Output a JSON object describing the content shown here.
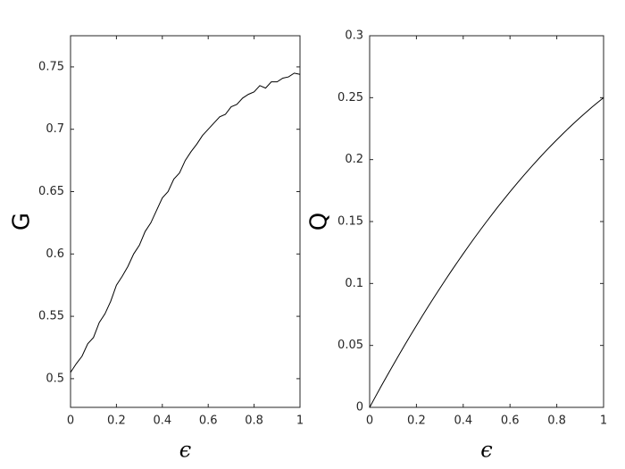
{
  "chart_data": [
    {
      "type": "line",
      "ylabel": "G",
      "xlabel": "ϵ",
      "xlim": [
        0,
        1
      ],
      "xticks": [
        0,
        0.2,
        0.4,
        0.6,
        0.8,
        1
      ],
      "ylim": [
        0.477,
        0.775
      ],
      "yticks": [
        0.5,
        0.55,
        0.6,
        0.65,
        0.7,
        0.75
      ],
      "x": [
        0,
        0.025,
        0.05,
        0.075,
        0.1,
        0.125,
        0.15,
        0.175,
        0.2,
        0.225,
        0.25,
        0.275,
        0.3,
        0.325,
        0.35,
        0.375,
        0.4,
        0.425,
        0.45,
        0.475,
        0.5,
        0.525,
        0.55,
        0.575,
        0.6,
        0.625,
        0.65,
        0.675,
        0.7,
        0.725,
        0.75,
        0.775,
        0.8,
        0.825,
        0.85,
        0.875,
        0.9,
        0.925,
        0.95,
        0.975,
        1
      ],
      "series": [
        {
          "color": "#000000",
          "values": [
            0.505,
            0.512,
            0.518,
            0.528,
            0.533,
            0.545,
            0.552,
            0.562,
            0.575,
            0.582,
            0.59,
            0.6,
            0.607,
            0.618,
            0.625,
            0.635,
            0.645,
            0.65,
            0.66,
            0.665,
            0.675,
            0.682,
            0.688,
            0.695,
            0.7,
            0.705,
            0.71,
            0.712,
            0.718,
            0.72,
            0.725,
            0.728,
            0.73,
            0.735,
            0.733,
            0.738,
            0.738,
            0.741,
            0.742,
            0.745,
            0.744
          ]
        }
      ]
    },
    {
      "type": "line",
      "ylabel": "Q",
      "xlabel": "ϵ",
      "xlim": [
        0,
        1
      ],
      "xticks": [
        0,
        0.2,
        0.4,
        0.6,
        0.8,
        1
      ],
      "ylim": [
        0,
        0.3
      ],
      "yticks": [
        0,
        0.05,
        0.1,
        0.15,
        0.2,
        0.25,
        0.3
      ],
      "x": [
        0,
        0.025,
        0.05,
        0.075,
        0.1,
        0.125,
        0.15,
        0.175,
        0.2,
        0.225,
        0.25,
        0.275,
        0.3,
        0.325,
        0.35,
        0.375,
        0.4,
        0.425,
        0.45,
        0.475,
        0.5,
        0.525,
        0.55,
        0.575,
        0.6,
        0.625,
        0.65,
        0.675,
        0.7,
        0.725,
        0.75,
        0.775,
        0.8,
        0.825,
        0.85,
        0.875,
        0.9,
        0.925,
        0.95,
        0.975,
        1
      ],
      "series": [
        {
          "color": "#000000",
          "values": [
            0,
            0.0087,
            0.0173,
            0.0257,
            0.034,
            0.0422,
            0.0503,
            0.0582,
            0.066,
            0.0737,
            0.0813,
            0.0887,
            0.096,
            0.1032,
            0.1103,
            0.1172,
            0.124,
            0.1307,
            0.1373,
            0.1437,
            0.15,
            0.1562,
            0.1623,
            0.1682,
            0.174,
            0.1797,
            0.1853,
            0.1907,
            0.196,
            0.2012,
            0.2063,
            0.2112,
            0.216,
            0.2207,
            0.2253,
            0.2297,
            0.234,
            0.2382,
            0.2423,
            0.2462,
            0.25
          ]
        }
      ]
    }
  ]
}
